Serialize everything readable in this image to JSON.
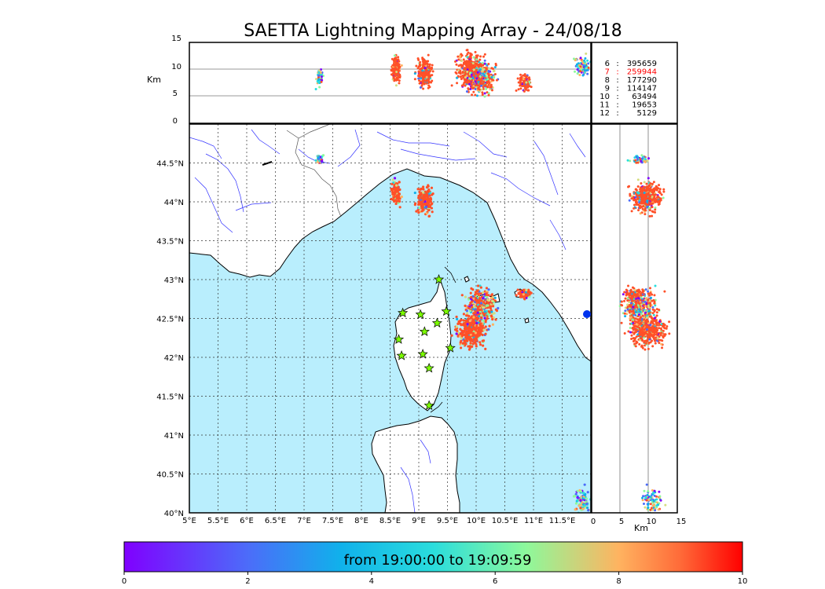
{
  "title": "SAETTA Lightning Mapping Array - 24/08/18",
  "top_panel": {
    "ylabel": "Km",
    "alt_ticks": [
      "15",
      "10",
      "5",
      "0"
    ],
    "alt_range_km": [
      0,
      15
    ]
  },
  "side_panel": {
    "xlabel": "Km",
    "alt_ticks": [
      "0",
      "5",
      "10",
      "15"
    ]
  },
  "map": {
    "lon_range": [
      5,
      12
    ],
    "lat_range": [
      40,
      45
    ],
    "lon_ticks": [
      "5°E",
      "5.5°E",
      "6°E",
      "6.5°E",
      "7°E",
      "7.5°E",
      "8°E",
      "8.5°E",
      "9°E",
      "9.5°E",
      "10°E",
      "10.5°E",
      "11°E",
      "11.5°E"
    ],
    "lat_ticks": [
      "44.5°N",
      "44°N",
      "43.5°N",
      "43°N",
      "42.5°N",
      "42°N",
      "41.5°N",
      "41°N",
      "40.5°N",
      "40°N"
    ],
    "colors": {
      "sea": "#b9eefd",
      "land": "#ffffff",
      "coast": "#000000",
      "rivers": "#3333ff",
      "station": "#7cfc00",
      "lightning_main": "#ff5028"
    }
  },
  "stations": [
    {
      "lon": 9.35,
      "lat": 43.0
    },
    {
      "lon": 8.72,
      "lat": 42.57
    },
    {
      "lon": 9.03,
      "lat": 42.55
    },
    {
      "lon": 9.48,
      "lat": 42.59
    },
    {
      "lon": 9.32,
      "lat": 42.44
    },
    {
      "lon": 9.1,
      "lat": 42.33
    },
    {
      "lon": 8.65,
      "lat": 42.23
    },
    {
      "lon": 9.55,
      "lat": 42.12
    },
    {
      "lon": 8.7,
      "lat": 42.02
    },
    {
      "lon": 9.07,
      "lat": 42.04
    },
    {
      "lon": 9.18,
      "lat": 41.86
    },
    {
      "lon": 9.18,
      "lat": 41.38
    }
  ],
  "counts": [
    {
      "label": "6",
      "value": "395659",
      "color": "#000000"
    },
    {
      "label": "7",
      "value": "259944",
      "color": "#ff0000"
    },
    {
      "label": "8",
      "value": "177290",
      "color": "#000000"
    },
    {
      "label": "9",
      "value": "114147",
      "color": "#000000"
    },
    {
      "label": "10",
      "value": "63494",
      "color": "#000000"
    },
    {
      "label": "11",
      "value": "19653",
      "color": "#000000"
    },
    {
      "label": "12",
      "value": "5129",
      "color": "#000000"
    }
  ],
  "lightning_clusters": [
    {
      "lon": 7.27,
      "lat": 44.55,
      "lon_spread": 0.04,
      "lat_spread": 0.03,
      "alt": 8.5,
      "alt_spread": 1.6,
      "n": 60,
      "main": 0.2
    },
    {
      "lon": 8.6,
      "lat": 44.12,
      "lon_spread": 0.05,
      "lat_spread": 0.09,
      "alt": 9.8,
      "alt_spread": 2.6,
      "n": 160,
      "main": 0.8
    },
    {
      "lon": 9.1,
      "lat": 44.02,
      "lon_spread": 0.09,
      "lat_spread": 0.11,
      "alt": 9.5,
      "alt_spread": 2.8,
      "n": 240,
      "main": 0.8
    },
    {
      "lon": 9.9,
      "lat": 42.35,
      "lon_spread": 0.15,
      "lat_spread": 0.13,
      "alt": 9.8,
      "alt_spread": 3.5,
      "n": 420,
      "main": 0.85
    },
    {
      "lon": 10.1,
      "lat": 42.65,
      "lon_spread": 0.16,
      "lat_spread": 0.15,
      "alt": 8.5,
      "alt_spread": 3.5,
      "n": 360,
      "main": 0.45
    },
    {
      "lon": 10.85,
      "lat": 42.82,
      "lon_spread": 0.07,
      "lat_spread": 0.04,
      "alt": 7.5,
      "alt_spread": 1.8,
      "n": 110,
      "main": 0.75
    },
    {
      "lon": 11.85,
      "lat": 40.15,
      "lon_spread": 0.1,
      "lat_spread": 0.1,
      "alt": 10.5,
      "alt_spread": 2.0,
      "n": 90,
      "main": 0.05
    }
  ],
  "colorbar": {
    "label": "from 19:00:00 to 19:09:59",
    "ticks": [
      "0",
      "2",
      "4",
      "6",
      "8",
      "10"
    ],
    "range": [
      0,
      10
    ]
  }
}
